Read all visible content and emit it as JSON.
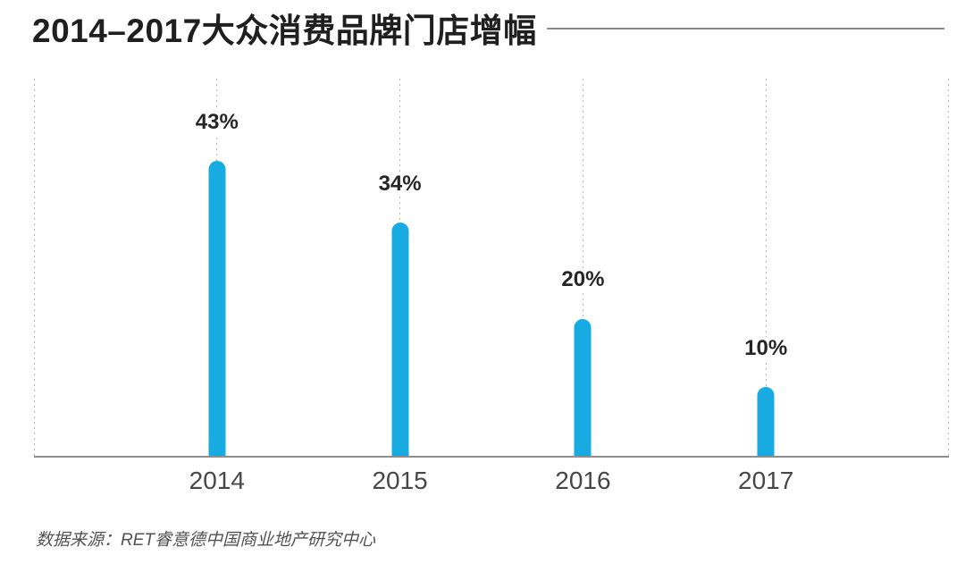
{
  "title": "2014–2017大众消费品牌门店增幅",
  "footer": {
    "source": "数据来源：RET睿意德中国商业地产研究中心"
  },
  "colors": {
    "bar": "#17abe2",
    "axis_line": "#8d8d8d",
    "gridline": "#b4b4b4",
    "title_text": "#1f1f1f",
    "value_label_text": "#262626",
    "tick_label_text": "#474747",
    "source_text": "#525252"
  },
  "chart_data": {
    "type": "bar",
    "title": "2014–2017大众消费品牌门店增幅",
    "categories": [
      "2014",
      "2015",
      "2016",
      "2017"
    ],
    "values": [
      43,
      34,
      20,
      10
    ],
    "value_labels": [
      "43%",
      "34%",
      "20%",
      "10%"
    ],
    "unit": "%",
    "xlabel": "",
    "ylabel": "",
    "ylim": [
      0,
      55
    ],
    "grid": "dashed vertical guide per category, plus dashed left/right plot edges",
    "legend": "none",
    "bar_style": "thin rounded-top bars",
    "baseline": "solid gray x-axis line"
  }
}
